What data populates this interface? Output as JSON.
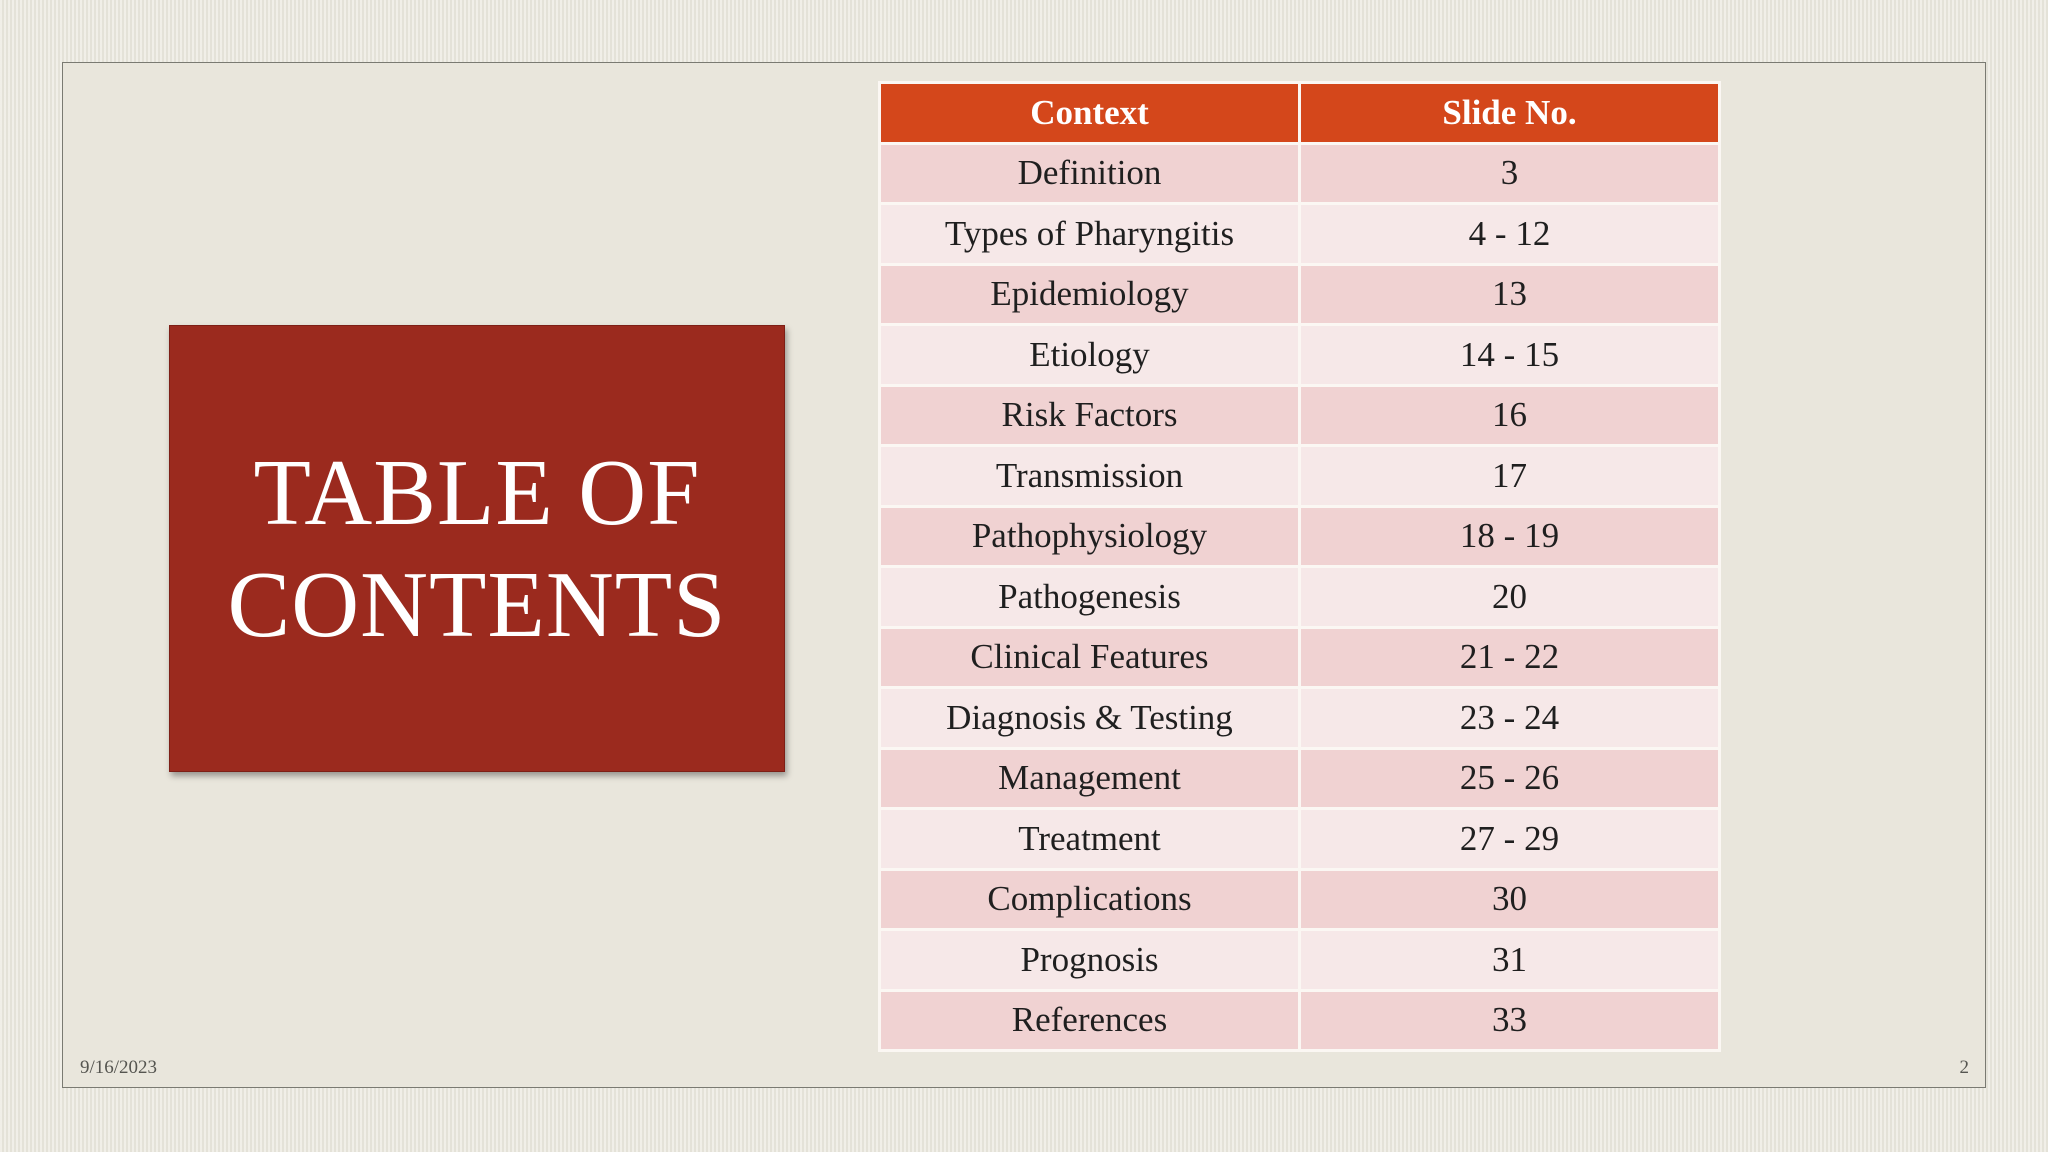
{
  "title": "TABLE OF\nCONTENTS",
  "table": {
    "headers": [
      "Context",
      "Slide No."
    ],
    "rows": [
      [
        "Definition",
        "3"
      ],
      [
        "Types of Pharyngitis",
        "4 - 12"
      ],
      [
        "Epidemiology",
        "13"
      ],
      [
        "Etiology",
        "14 - 15"
      ],
      [
        "Risk Factors",
        "16"
      ],
      [
        "Transmission",
        "17"
      ],
      [
        "Pathophysiology",
        "18 - 19"
      ],
      [
        "Pathogenesis",
        "20"
      ],
      [
        "Clinical Features",
        "21 - 22"
      ],
      [
        "Diagnosis & Testing",
        "23 - 24"
      ],
      [
        "Management",
        "25 - 26"
      ],
      [
        "Treatment",
        "27 - 29"
      ],
      [
        "Complications",
        "30"
      ],
      [
        "Prognosis",
        "31"
      ],
      [
        "References",
        "33"
      ]
    ]
  },
  "footer": {
    "date": "9/16/2023",
    "page": "2"
  },
  "colors": {
    "title_box": "#9b2a1e",
    "header": "#d4471b",
    "row_odd": "#f0d2d2",
    "row_even": "#f6e8e8",
    "background": "#e9e6dc"
  }
}
